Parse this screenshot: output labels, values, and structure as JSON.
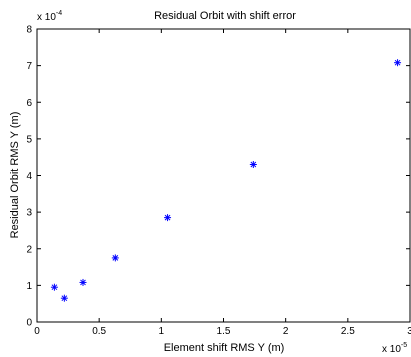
{
  "chart_data": {
    "type": "scatter",
    "title": "Residual Orbit with shift error",
    "xlabel": "Element shift RMS Y (m)",
    "ylabel": "Residual Orbit RMS Y (m)",
    "x_exponent_label": "x 10",
    "x_exponent_power": "-5",
    "y_exponent_label": "x 10",
    "y_exponent_power": "-4",
    "xlim": [
      0,
      3
    ],
    "ylim": [
      0,
      8
    ],
    "x_ticks": [
      0,
      0.5,
      1,
      1.5,
      2,
      2.5,
      3
    ],
    "x_tick_labels": [
      "0",
      "0.5",
      "1",
      "1.5",
      "2",
      "2.5",
      "3"
    ],
    "y_ticks": [
      0,
      1,
      2,
      3,
      4,
      5,
      6,
      7,
      8
    ],
    "y_tick_labels": [
      "0",
      "1",
      "2",
      "3",
      "4",
      "5",
      "6",
      "7",
      "8"
    ],
    "grid": false,
    "marker": "*",
    "marker_color": "#0000ff",
    "series": [
      {
        "x": [
          0.14,
          0.22,
          0.37,
          0.63,
          1.05,
          1.74,
          2.9
        ],
        "y": [
          0.95,
          0.65,
          1.08,
          1.75,
          2.85,
          4.3,
          7.08
        ]
      }
    ]
  }
}
